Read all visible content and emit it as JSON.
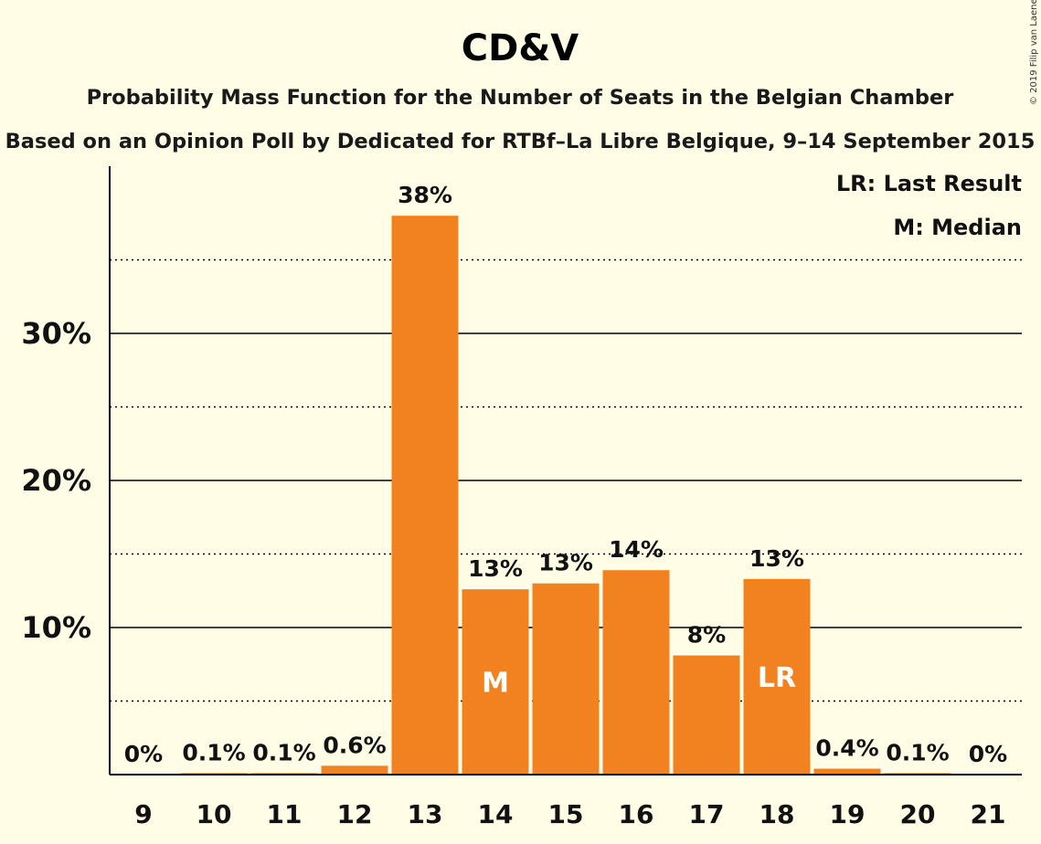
{
  "chart_data": {
    "type": "bar",
    "title": "CD&V",
    "subtitle": "Probability Mass Function for the Number of Seats in the Belgian Chamber",
    "subtitle2": "Based on an Opinion Poll by Dedicated for RTBf–La Libre Belgique, 9–14 September 2015",
    "copyright": "© 2019 Filip van Laenen",
    "legend": [
      "LR: Last Result",
      "M: Median"
    ],
    "legend_position": "top-right",
    "categories": [
      "9",
      "10",
      "11",
      "12",
      "13",
      "14",
      "15",
      "16",
      "17",
      "18",
      "19",
      "20",
      "21"
    ],
    "values": [
      0.0,
      0.1,
      0.1,
      0.6,
      38.0,
      12.6,
      13.0,
      13.9,
      8.1,
      13.3,
      0.4,
      0.1,
      0.0
    ],
    "value_labels": [
      "0%",
      "0.1%",
      "0.1%",
      "0.6%",
      "38%",
      "13%",
      "13%",
      "14%",
      "8%",
      "13%",
      "0.4%",
      "0.1%",
      "0%"
    ],
    "bar_markers": [
      {
        "category": "14",
        "label": "M"
      },
      {
        "category": "18",
        "label": "LR"
      }
    ],
    "ylim": [
      0,
      41
    ],
    "yticks": [
      10,
      20,
      30
    ],
    "ytick_labels": [
      "10%",
      "20%",
      "30%"
    ],
    "minor_gridlines": [
      5,
      15,
      25,
      35
    ],
    "grid": true,
    "bar_color": "#F28220"
  }
}
